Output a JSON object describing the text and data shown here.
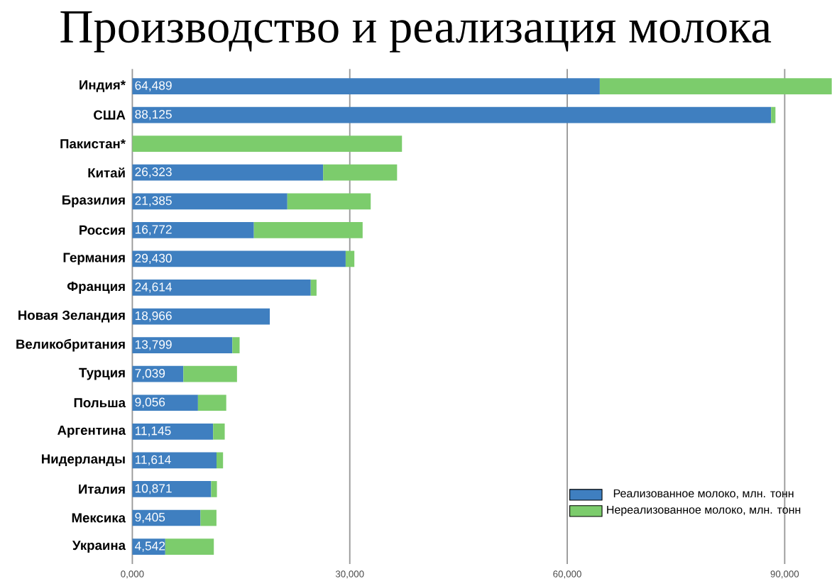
{
  "chart_data": {
    "type": "bar",
    "orientation": "horizontal",
    "stacked": true,
    "title": "Производство и реализация молока",
    "categories": [
      "Индия*",
      "США",
      "Пакистан*",
      "Китай",
      "Бразилия",
      "Россия",
      "Германия",
      "Франция",
      "Новая Зеландия",
      "Великобритания",
      "Турция",
      "Польша",
      "Аргентина",
      "Нидерланды",
      "Италия",
      "Мексика",
      "Украина"
    ],
    "series": [
      {
        "name": "Реализованное молоко, млн. тонн",
        "color": "#3f7fc0",
        "values": [
          64489,
          88125,
          null,
          26323,
          21385,
          16772,
          29430,
          24614,
          18966,
          13799,
          7039,
          9056,
          11145,
          11614,
          10871,
          9405,
          4542
        ],
        "value_labels": [
          "64,489",
          "88,125",
          null,
          "26,323",
          "21,385",
          "16,772",
          "29,430",
          "24,614",
          "18,966",
          "13,799",
          "7,039",
          "9,056",
          "11,145",
          "11,614",
          "10,871",
          "9,405",
          "4,542"
        ]
      },
      {
        "name": "Нереализованное молоко, млн. тонн",
        "color": "#7ccc6c",
        "values": [
          32000,
          600,
          37200,
          10200,
          11500,
          15000,
          1200,
          800,
          null,
          1000,
          7400,
          3900,
          1600,
          900,
          800,
          2200,
          6700
        ]
      }
    ],
    "xlim": [
      0,
      96500
    ],
    "xticks": [
      {
        "value": 0,
        "label": "0,000"
      },
      {
        "value": 30000,
        "label": "30,000"
      },
      {
        "value": 60000,
        "label": "60,000"
      },
      {
        "value": 90000,
        "label": "90,000"
      }
    ],
    "grid": "x",
    "legend": "bottom right"
  }
}
